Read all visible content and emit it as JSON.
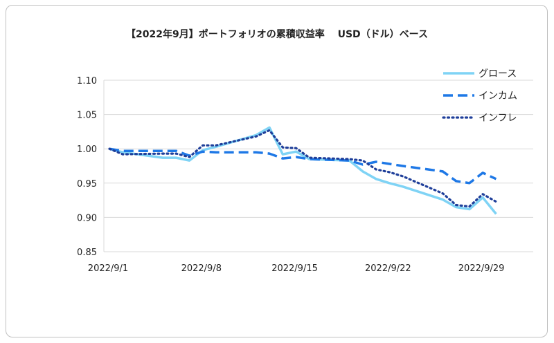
{
  "chart_data": {
    "type": "line",
    "title": "【2022年9月】ポートフォリオの累積収益率　 USD（ドル）ベース",
    "xlabel": "",
    "ylabel": "",
    "ylim": [
      0.85,
      1.1
    ],
    "y_ticks": [
      "1.10",
      "1.05",
      "1.00",
      "0.95",
      "0.90",
      "0.85"
    ],
    "x_ticks": [
      {
        "label": "2022/9/1",
        "day": 1
      },
      {
        "label": "2022/9/8",
        "day": 8
      },
      {
        "label": "2022/9/15",
        "day": 15
      },
      {
        "label": "2022/9/22",
        "day": 22
      },
      {
        "label": "2022/9/29",
        "day": 29
      }
    ],
    "grid": "horizontal",
    "legend_position": "top-right",
    "x": [
      "2022/9/1",
      "2022/9/2",
      "2022/9/5",
      "2022/9/6",
      "2022/9/7",
      "2022/9/8",
      "2022/9/9",
      "2022/9/12",
      "2022/9/13",
      "2022/9/14",
      "2022/9/15",
      "2022/9/16",
      "2022/9/19",
      "2022/9/20",
      "2022/9/21",
      "2022/9/22",
      "2022/9/23",
      "2022/9/26",
      "2022/9/27",
      "2022/9/28",
      "2022/9/29",
      "2022/9/30"
    ],
    "x_days": [
      1,
      2,
      5,
      6,
      7,
      8,
      9,
      12,
      13,
      14,
      15,
      16,
      19,
      20,
      21,
      22,
      23,
      26,
      27,
      28,
      29,
      30
    ],
    "series": [
      {
        "name": "グロース",
        "color": "#7fd3f5",
        "style": "solid",
        "values": [
          1.0,
          0.995,
          0.987,
          0.987,
          0.983,
          0.998,
          1.003,
          1.02,
          1.031,
          0.992,
          0.996,
          0.985,
          0.983,
          0.967,
          0.956,
          0.95,
          0.945,
          0.926,
          0.915,
          0.912,
          0.929,
          0.905
        ]
      },
      {
        "name": "インカム",
        "color": "#1e78e6",
        "style": "dashed",
        "values": [
          1.0,
          0.997,
          0.997,
          0.997,
          0.99,
          0.996,
          0.995,
          0.995,
          0.993,
          0.986,
          0.988,
          0.985,
          0.983,
          0.977,
          0.981,
          0.978,
          0.975,
          0.967,
          0.953,
          0.95,
          0.965,
          0.956
        ]
      },
      {
        "name": "インフレ",
        "color": "#1f3f9a",
        "style": "dotted",
        "values": [
          1.0,
          0.992,
          0.993,
          0.993,
          0.988,
          1.005,
          1.005,
          1.018,
          1.027,
          1.002,
          1.001,
          0.987,
          0.985,
          0.983,
          0.97,
          0.966,
          0.96,
          0.935,
          0.918,
          0.916,
          0.934,
          0.923
        ]
      }
    ]
  }
}
